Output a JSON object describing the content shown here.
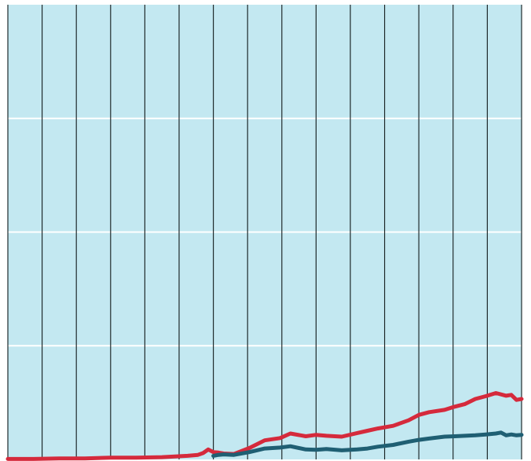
{
  "chart_data": {
    "type": "line",
    "title": "",
    "xlabel": "",
    "ylabel": "",
    "grid": true,
    "xlim": [
      0,
      100
    ],
    "ylim": [
      0,
      100
    ],
    "background_color": "#c3e8f1",
    "vertical_grid_color": "#1f2a2c",
    "horizontal_grid_color": "#ffffff",
    "vertical_grid_count": 15,
    "horizontal_grid_values": [
      25,
      50,
      75
    ],
    "series": [
      {
        "color": "#d52a3c",
        "x": [
          0,
          5,
          10,
          15,
          20,
          25,
          30,
          35,
          37,
          38,
          39,
          40,
          41,
          42,
          44,
          47,
          50,
          53,
          55,
          58,
          60,
          62,
          65,
          68,
          70,
          72,
          75,
          78,
          80,
          82,
          85,
          87,
          89,
          91,
          93,
          95,
          97,
          98,
          99,
          100
        ],
        "y": [
          0.1,
          0.1,
          0.2,
          0.2,
          0.4,
          0.4,
          0.5,
          0.8,
          1.0,
          1.4,
          2.2,
          1.6,
          1.5,
          1.3,
          1.2,
          2.5,
          4.2,
          4.7,
          5.7,
          5.1,
          5.4,
          5.2,
          5.0,
          5.8,
          6.3,
          6.8,
          7.4,
          8.6,
          9.8,
          10.4,
          10.9,
          11.6,
          12.2,
          13.3,
          13.9,
          14.6,
          14.0,
          14.2,
          13.1,
          13.3
        ]
      },
      {
        "color": "#1f5f73",
        "x": [
          40,
          41,
          42,
          44,
          47,
          50,
          53,
          55,
          58,
          60,
          62,
          65,
          68,
          70,
          72,
          75,
          78,
          80,
          82,
          85,
          87,
          89,
          91,
          93,
          95,
          96,
          97,
          98,
          99,
          100
        ],
        "y": [
          0.8,
          1.0,
          1.1,
          1.0,
          1.6,
          2.4,
          2.6,
          2.9,
          2.2,
          2.1,
          2.3,
          2.0,
          2.2,
          2.4,
          2.8,
          3.2,
          3.9,
          4.3,
          4.6,
          5.0,
          5.1,
          5.2,
          5.3,
          5.5,
          5.7,
          5.9,
          5.3,
          5.5,
          5.3,
          5.4
        ]
      }
    ]
  }
}
